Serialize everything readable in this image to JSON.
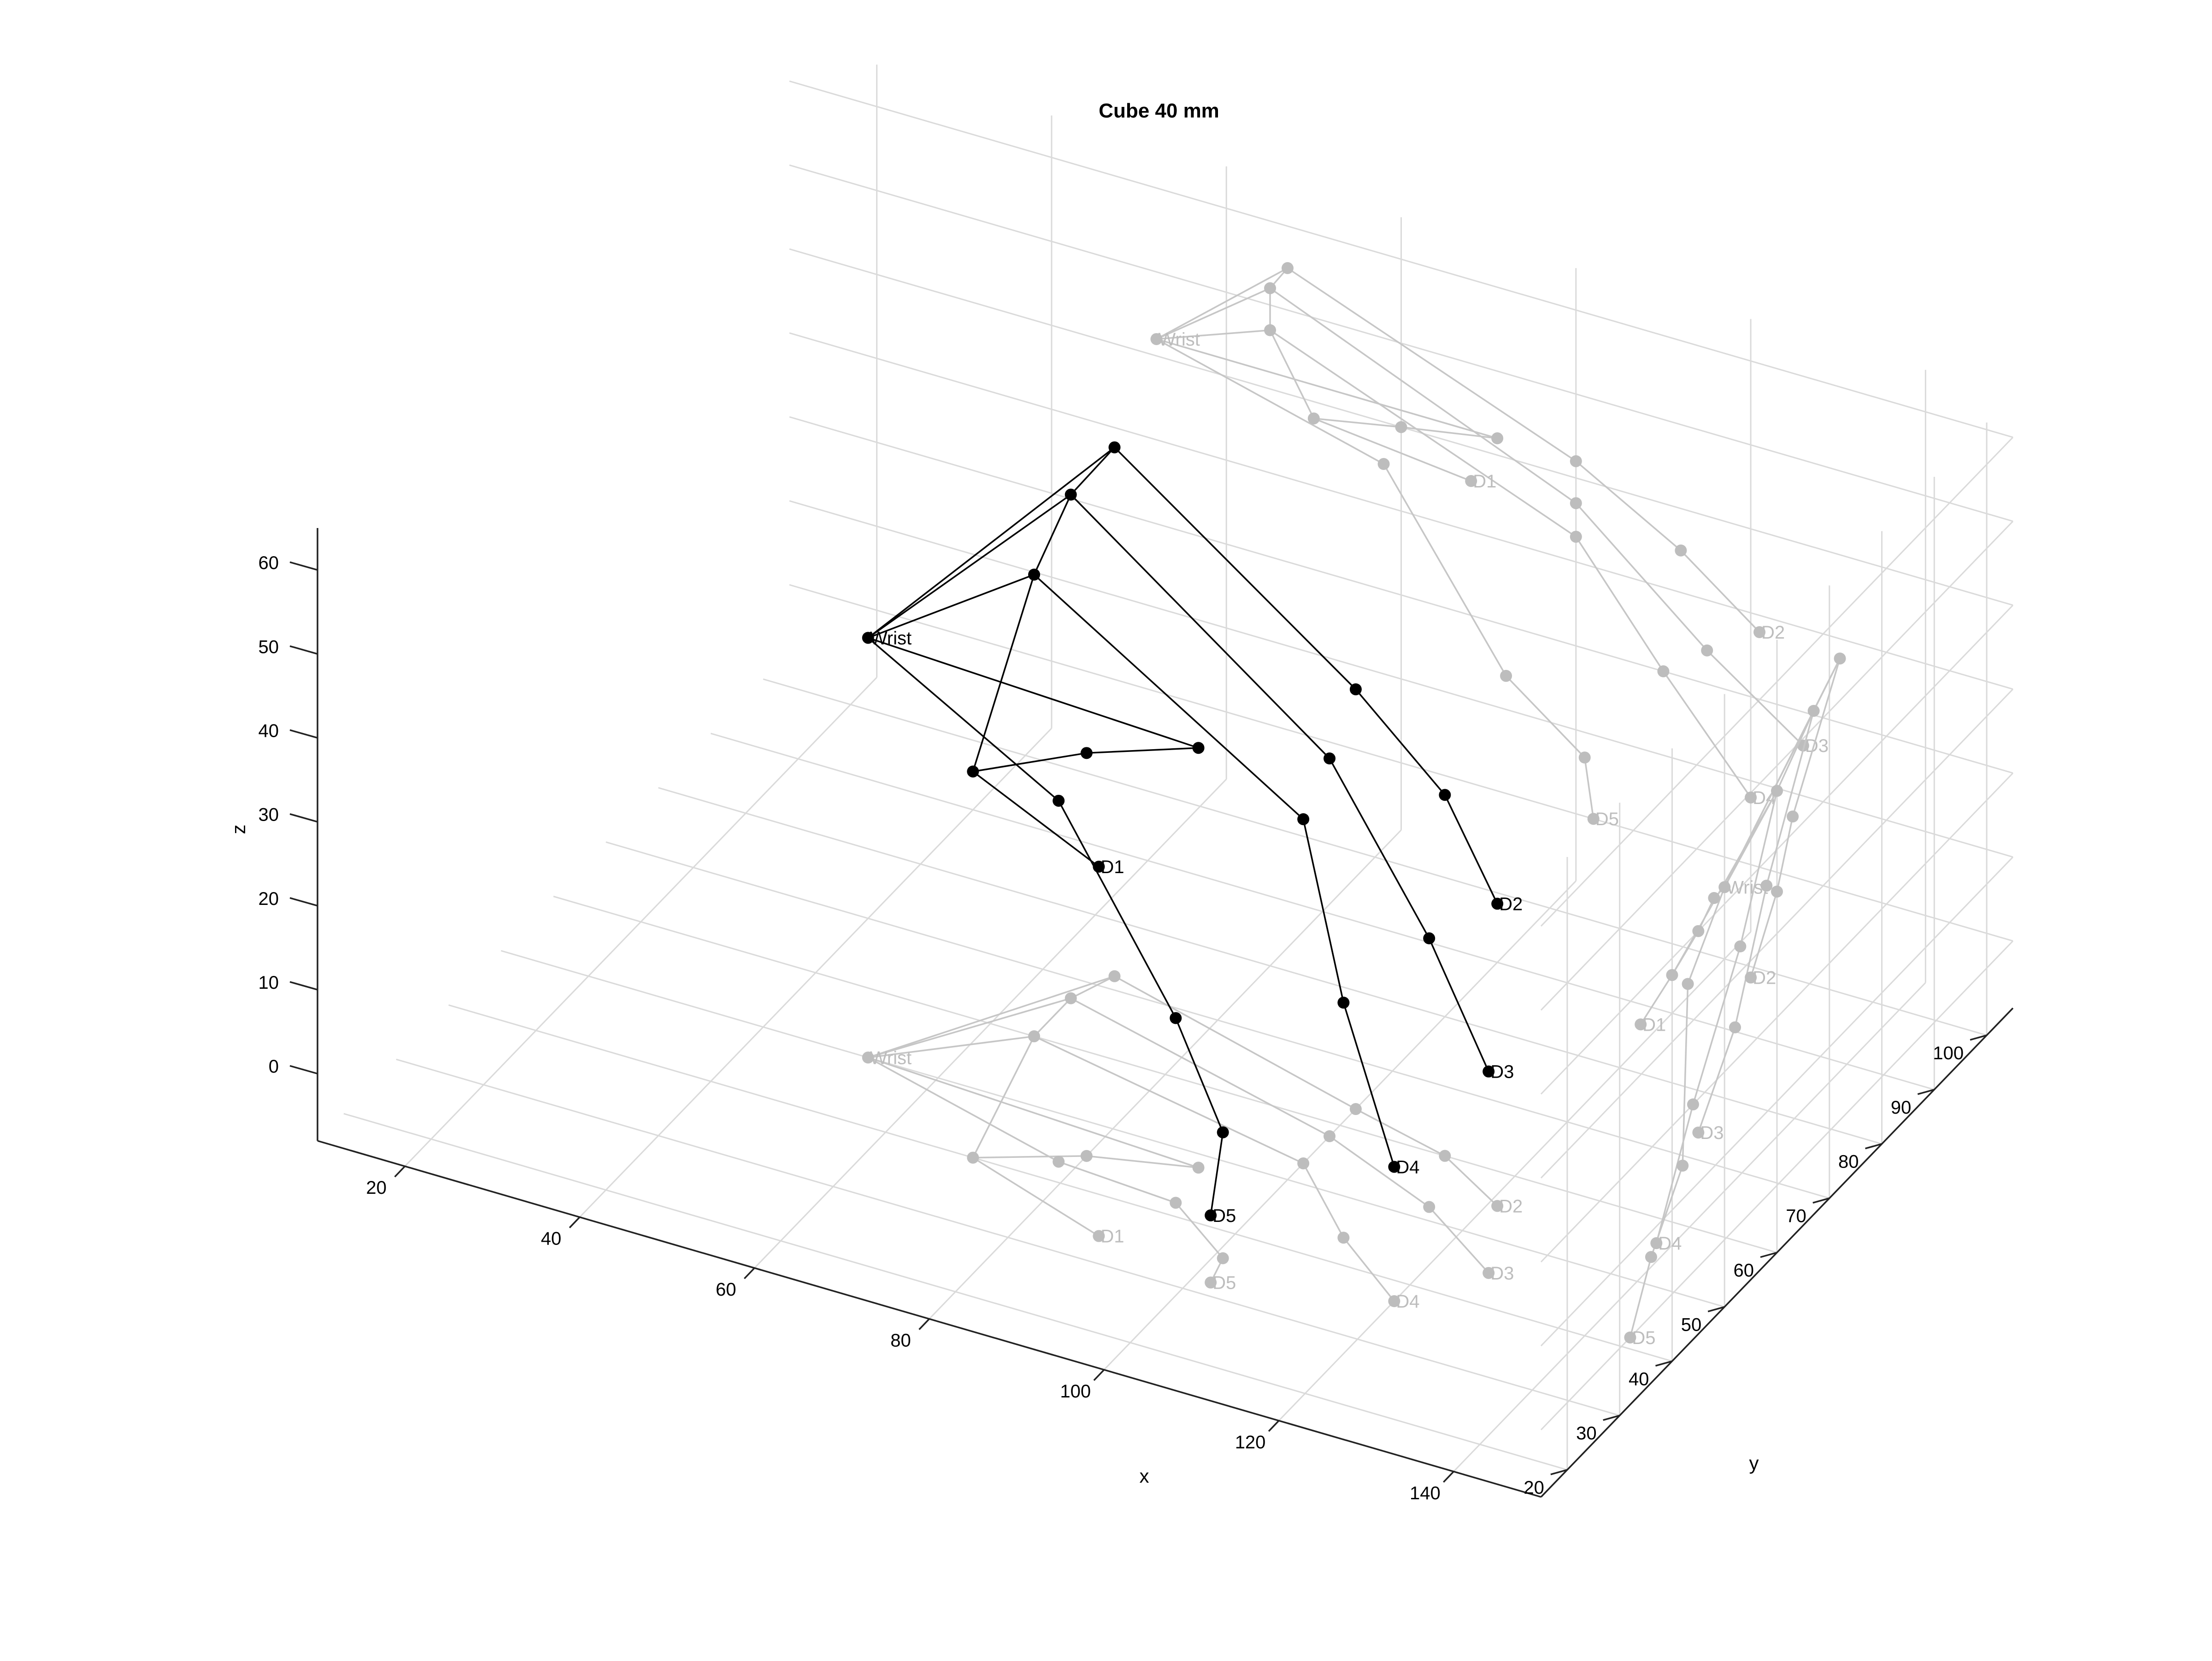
{
  "chart_data": {
    "type": "scatter",
    "title": "Cube 40 mm",
    "xlabel": "x",
    "ylabel": "y",
    "zlabel": "z",
    "xlim": [
      10,
      150
    ],
    "ylim": [
      15,
      105
    ],
    "zlim": [
      -8,
      65
    ],
    "xticks": [
      20,
      40,
      60,
      80,
      100,
      120,
      140
    ],
    "yticks": [
      20,
      30,
      40,
      50,
      60,
      70,
      80,
      90,
      100
    ],
    "zticks": [
      0,
      10,
      20,
      30,
      40,
      50,
      60
    ],
    "grid": true,
    "projections": [
      "xz-plane (back, y = 105)",
      "yz-plane (right, x = 150)",
      "xy-plane (floor, z = -8)"
    ],
    "points": [
      {
        "id": "W",
        "x": 52,
        "y": 50,
        "z": 42,
        "label": "Wrist"
      },
      {
        "id": "A1",
        "x": 67,
        "y": 72,
        "z": 55
      },
      {
        "id": "A2",
        "x": 65,
        "y": 67,
        "z": 52
      },
      {
        "id": "A3",
        "x": 65,
        "y": 60,
        "z": 47
      },
      {
        "id": "A4",
        "x": 91,
        "y": 48,
        "z": 42
      },
      {
        "id": "A5",
        "x": 80,
        "y": 45,
        "z": 40
      },
      {
        "id": "A6",
        "x": 70,
        "y": 40,
        "z": 38
      },
      {
        "id": "D1",
        "x": 88,
        "y": 34,
        "z": 36,
        "label": "D1"
      },
      {
        "id": "B1",
        "x": 100,
        "y": 63,
        "z": 42
      },
      {
        "id": "B2",
        "x": 112,
        "y": 60,
        "z": 35
      },
      {
        "id": "D2",
        "x": 121,
        "y": 55,
        "z": 28,
        "label": "D2"
      },
      {
        "id": "C1",
        "x": 100,
        "y": 58,
        "z": 37
      },
      {
        "id": "C2",
        "x": 115,
        "y": 52,
        "z": 24
      },
      {
        "id": "D3",
        "x": 126,
        "y": 45,
        "z": 16,
        "label": "D3"
      },
      {
        "id": "E1",
        "x": 100,
        "y": 53,
        "z": 33
      },
      {
        "id": "E2",
        "x": 110,
        "y": 44,
        "z": 20
      },
      {
        "id": "D4",
        "x": 120,
        "y": 37,
        "z": 8,
        "label": "D4"
      },
      {
        "id": "F1",
        "x": 78,
        "y": 43,
        "z": 35
      },
      {
        "id": "F2",
        "x": 92,
        "y": 42,
        "z": 14
      },
      {
        "id": "F3",
        "x": 101,
        "y": 36,
        "z": 7
      },
      {
        "id": "D5",
        "x": 102,
        "y": 32,
        "z": 0,
        "label": "D5"
      }
    ],
    "edges": [
      [
        "W",
        "A1"
      ],
      [
        "W",
        "A2"
      ],
      [
        "W",
        "A3"
      ],
      [
        "W",
        "A4"
      ],
      [
        "W",
        "F1"
      ],
      [
        "A1",
        "A2"
      ],
      [
        "A2",
        "A3"
      ],
      [
        "A3",
        "A6"
      ],
      [
        "A6",
        "D1"
      ],
      [
        "A4",
        "A5"
      ],
      [
        "A5",
        "A6"
      ],
      [
        "A1",
        "B1"
      ],
      [
        "B1",
        "B2"
      ],
      [
        "B2",
        "D2"
      ],
      [
        "A2",
        "C1"
      ],
      [
        "C1",
        "C2"
      ],
      [
        "C2",
        "D3"
      ],
      [
        "A3",
        "E1"
      ],
      [
        "E1",
        "E2"
      ],
      [
        "E2",
        "D4"
      ],
      [
        "F1",
        "F2"
      ],
      [
        "F2",
        "F3"
      ],
      [
        "F3",
        "D5"
      ]
    ]
  }
}
